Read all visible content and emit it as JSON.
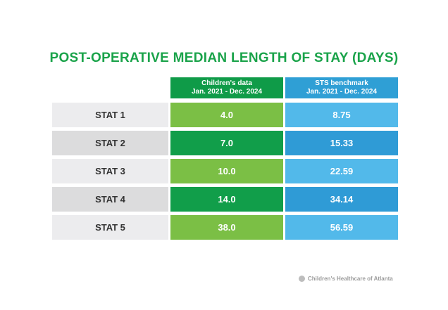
{
  "chart_data": {
    "type": "table",
    "title": "POST-OPERATIVE MEDIAN LENGTH OF STAY (DAYS)",
    "columns": [
      {
        "name": "Children's data",
        "period": "Jan. 2021 - Dec. 2024"
      },
      {
        "name": "STS benchmark",
        "period": "Jan. 2021 - Dec. 2024"
      }
    ],
    "rows": [
      {
        "label": "STAT 1",
        "values": [
          "4.0",
          "8.75"
        ]
      },
      {
        "label": "STAT 2",
        "values": [
          "7.0",
          "15.33"
        ]
      },
      {
        "label": "STAT 3",
        "values": [
          "10.0",
          "22.59"
        ]
      },
      {
        "label": "STAT 4",
        "values": [
          "14.0",
          "34.14"
        ]
      },
      {
        "label": "STAT 5",
        "values": [
          "38.0",
          "56.59"
        ]
      }
    ]
  },
  "footer": {
    "logo_text": "Children's Healthcare of Atlanta"
  },
  "colors": {
    "title": "#1aa34a",
    "children_header": "#0f9b48",
    "sts_header": "#2f9fd5",
    "children_light": "#7bbf45",
    "children_dark": "#119e4a",
    "sts_light": "#52b9ea",
    "sts_dark": "#2f9bd6",
    "label_light": "#ececee",
    "label_dark": "#dcdcdd"
  }
}
